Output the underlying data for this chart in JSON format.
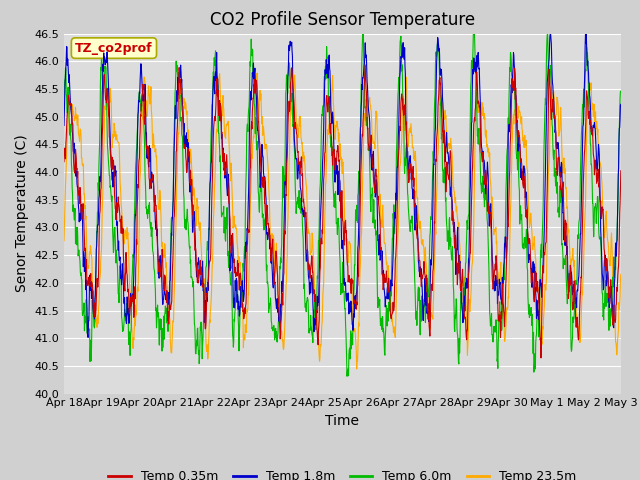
{
  "title": "CO2 Profile Sensor Temperature",
  "ylabel": "Senor Temperature (C)",
  "xlabel": "Time",
  "annotation": "TZ_co2prof",
  "ylim": [
    40.0,
    46.5
  ],
  "yticks": [
    40.0,
    40.5,
    41.0,
    41.5,
    42.0,
    42.5,
    43.0,
    43.5,
    44.0,
    44.5,
    45.0,
    45.5,
    46.0,
    46.5
  ],
  "xtick_labels": [
    "Apr 18",
    "Apr 19",
    "Apr 20",
    "Apr 21",
    "Apr 22",
    "Apr 23",
    "Apr 24",
    "Apr 25",
    "Apr 26",
    "Apr 27",
    "Apr 28",
    "Apr 29",
    "Apr 30",
    "May 1",
    "May 2",
    "May 3"
  ],
  "n_points": 1500,
  "colors": {
    "Temp 0.35m": "#cc0000",
    "Temp 1.8m": "#0000cc",
    "Temp 6.0m": "#00bb00",
    "Temp 23.5m": "#ffaa00"
  },
  "fig_facecolor": "#d0d0d0",
  "axes_facecolor": "#dcdcdc",
  "annotation_box_color": "#ffffcc",
  "annotation_box_edge": "#aaaa00",
  "annotation_text_color": "#cc0000",
  "title_fontsize": 12,
  "axis_label_fontsize": 10,
  "tick_label_fontsize": 8,
  "legend_fontsize": 9,
  "linewidth": 0.8
}
